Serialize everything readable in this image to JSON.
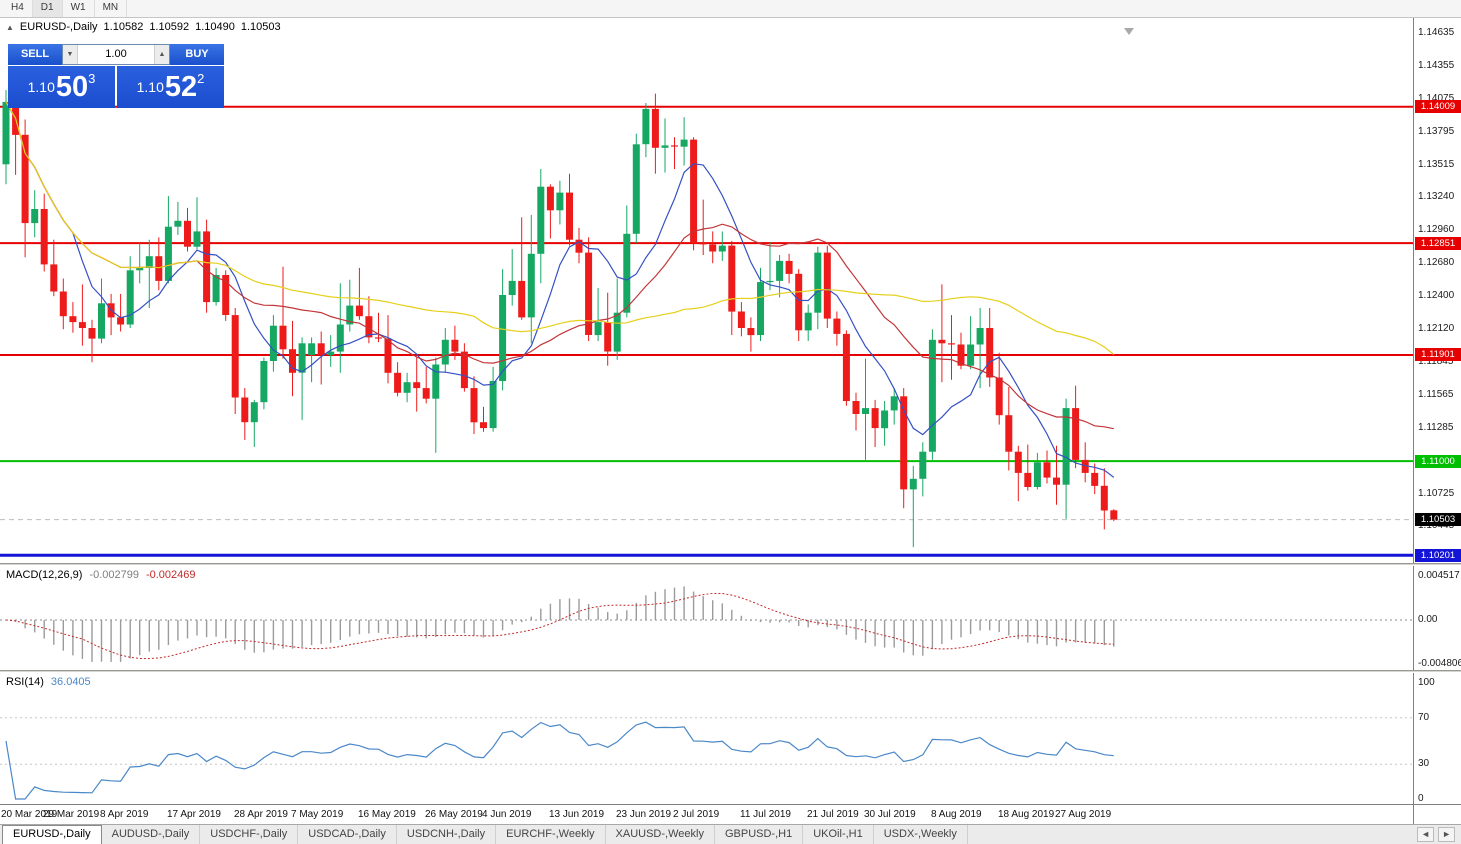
{
  "toolbar": {
    "timeframes": [
      {
        "label": "H4",
        "active": false
      },
      {
        "label": "D1",
        "active": true
      },
      {
        "label": "W1",
        "active": false
      },
      {
        "label": "MN",
        "active": false
      }
    ]
  },
  "chart_header": {
    "expand_icon": "▲",
    "symbol_label": "EURUSD-,Daily",
    "open": "1.10582",
    "high": "1.10592",
    "low": "1.10490",
    "close": "1.10503"
  },
  "trade_panel": {
    "sell_label": "SELL",
    "buy_label": "BUY",
    "volume": "1.00",
    "volume_down_icon": "▼",
    "volume_up_icon": "▲",
    "sell_price_small": "1.10",
    "sell_price_big": "50",
    "sell_price_sup": "3",
    "buy_price_small": "1.10",
    "buy_price_big": "52",
    "buy_price_sup": "2"
  },
  "price_axis": {
    "labels": [
      "1.14635",
      "1.14355",
      "1.14075",
      "1.13795",
      "1.13515",
      "1.13240",
      "1.12960",
      "1.12680",
      "1.12400",
      "1.12120",
      "1.11845",
      "1.11565",
      "1.11285",
      "1.11005",
      "1.10725",
      "1.10445"
    ]
  },
  "levels": [
    {
      "name": "resistance-1",
      "label": "1.14009",
      "price": 1.14009,
      "color": "#e60000",
      "width": 2
    },
    {
      "name": "resistance-2",
      "label": "1.12851",
      "price": 1.12851,
      "color": "#e60000",
      "width": 2
    },
    {
      "name": "resistance-3",
      "label": "1.11901",
      "price": 1.11901,
      "color": "#e60000",
      "width": 2
    },
    {
      "name": "support-green",
      "label": "1.11000",
      "price": 1.11,
      "color": "#00bf00",
      "width": 2
    },
    {
      "name": "support-blue",
      "label": "1.10201",
      "price": 1.10201,
      "color": "#1414d8",
      "width": 3
    }
  ],
  "current_price": {
    "label": "1.10503",
    "value": 1.10503,
    "bg": "#000000"
  },
  "chart_data": {
    "type": "candlestick",
    "title": "EURUSD-,Daily",
    "symbol": "EURUSD",
    "timeframe": "Daily",
    "y_range": [
      1.10135,
      1.14762
    ],
    "candles_ohlc": [
      [
        1.1352,
        1.1415,
        1.1335,
        1.1405
      ],
      [
        1.1405,
        1.1419,
        1.1343,
        1.1377
      ],
      [
        1.1377,
        1.139,
        1.1273,
        1.1302
      ],
      [
        1.1302,
        1.133,
        1.129,
        1.1314
      ],
      [
        1.1314,
        1.1327,
        1.1261,
        1.1267
      ],
      [
        1.1267,
        1.1288,
        1.124,
        1.1244
      ],
      [
        1.1244,
        1.1255,
        1.1212,
        1.1223
      ],
      [
        1.1223,
        1.1235,
        1.1209,
        1.1218
      ],
      [
        1.1218,
        1.125,
        1.1198,
        1.1213
      ],
      [
        1.1213,
        1.122,
        1.1184,
        1.1204
      ],
      [
        1.1204,
        1.1255,
        1.12,
        1.1234
      ],
      [
        1.1234,
        1.1242,
        1.1207,
        1.1222
      ],
      [
        1.1222,
        1.1242,
        1.121,
        1.1216
      ],
      [
        1.1216,
        1.1274,
        1.1213,
        1.1262
      ],
      [
        1.1262,
        1.1285,
        1.1251,
        1.1264
      ],
      [
        1.1264,
        1.1288,
        1.123,
        1.1274
      ],
      [
        1.1274,
        1.129,
        1.1245,
        1.1253
      ],
      [
        1.1253,
        1.1325,
        1.1251,
        1.1299
      ],
      [
        1.1299,
        1.132,
        1.1292,
        1.1304
      ],
      [
        1.1304,
        1.1315,
        1.1278,
        1.1282
      ],
      [
        1.1282,
        1.1324,
        1.128,
        1.1295
      ],
      [
        1.1295,
        1.1305,
        1.1226,
        1.1235
      ],
      [
        1.1235,
        1.1264,
        1.1232,
        1.1258
      ],
      [
        1.1258,
        1.1262,
        1.1219,
        1.1224
      ],
      [
        1.1224,
        1.123,
        1.114,
        1.1154
      ],
      [
        1.1154,
        1.1162,
        1.1118,
        1.1133
      ],
      [
        1.1133,
        1.1152,
        1.1112,
        1.115
      ],
      [
        1.115,
        1.1188,
        1.1144,
        1.1185
      ],
      [
        1.1185,
        1.1224,
        1.1176,
        1.1215
      ],
      [
        1.1215,
        1.1265,
        1.1187,
        1.1195
      ],
      [
        1.1195,
        1.1219,
        1.1155,
        1.1175
      ],
      [
        1.1175,
        1.1205,
        1.1135,
        1.12
      ],
      [
        1.119,
        1.1205,
        1.1167,
        1.12
      ],
      [
        1.12,
        1.121,
        1.1165,
        1.119
      ],
      [
        1.119,
        1.1207,
        1.118,
        1.1193
      ],
      [
        1.1193,
        1.1251,
        1.1175,
        1.1216
      ],
      [
        1.1216,
        1.1254,
        1.121,
        1.1232
      ],
      [
        1.1232,
        1.1264,
        1.122,
        1.1223
      ],
      [
        1.1223,
        1.124,
        1.12,
        1.1205
      ],
      [
        1.1205,
        1.1226,
        1.1201,
        1.1204
      ],
      [
        1.1204,
        1.1224,
        1.1166,
        1.1175
      ],
      [
        1.1175,
        1.1184,
        1.1155,
        1.1158
      ],
      [
        1.1158,
        1.1175,
        1.115,
        1.1167
      ],
      [
        1.1167,
        1.1188,
        1.1142,
        1.1162
      ],
      [
        1.1162,
        1.118,
        1.1149,
        1.1153
      ],
      [
        1.1153,
        1.1188,
        1.1107,
        1.1182
      ],
      [
        1.1182,
        1.1213,
        1.1175,
        1.1203
      ],
      [
        1.1203,
        1.1215,
        1.1186,
        1.1193
      ],
      [
        1.1193,
        1.12,
        1.1159,
        1.1162
      ],
      [
        1.1162,
        1.1172,
        1.1123,
        1.1133
      ],
      [
        1.1133,
        1.1146,
        1.1125,
        1.1128
      ],
      [
        1.1128,
        1.118,
        1.1125,
        1.1168
      ],
      [
        1.1168,
        1.1263,
        1.116,
        1.1241
      ],
      [
        1.1241,
        1.128,
        1.1232,
        1.1253
      ],
      [
        1.1253,
        1.1307,
        1.122,
        1.1222
      ],
      [
        1.1222,
        1.1309,
        1.12,
        1.1276
      ],
      [
        1.1276,
        1.1348,
        1.1251,
        1.1333
      ],
      [
        1.1333,
        1.1335,
        1.1289,
        1.1313
      ],
      [
        1.1313,
        1.1338,
        1.1301,
        1.1328
      ],
      [
        1.1328,
        1.1344,
        1.1283,
        1.1288
      ],
      [
        1.1288,
        1.1298,
        1.1268,
        1.1277
      ],
      [
        1.1277,
        1.129,
        1.1202,
        1.1207
      ],
      [
        1.1207,
        1.1247,
        1.1202,
        1.1218
      ],
      [
        1.1218,
        1.1243,
        1.1181,
        1.1193
      ],
      [
        1.1193,
        1.1255,
        1.1186,
        1.1226
      ],
      [
        1.1226,
        1.1317,
        1.1222,
        1.1293
      ],
      [
        1.1293,
        1.1378,
        1.1285,
        1.1369
      ],
      [
        1.1369,
        1.1404,
        1.1358,
        1.1399
      ],
      [
        1.1399,
        1.1412,
        1.1344,
        1.1366
      ],
      [
        1.1366,
        1.1391,
        1.1345,
        1.1368
      ],
      [
        1.1368,
        1.1375,
        1.1348,
        1.1367
      ],
      [
        1.1367,
        1.1392,
        1.1351,
        1.1373
      ],
      [
        1.1373,
        1.1375,
        1.1279,
        1.1285
      ],
      [
        1.1285,
        1.1322,
        1.1275,
        1.1284
      ],
      [
        1.1284,
        1.1295,
        1.1268,
        1.1278
      ],
      [
        1.1278,
        1.1295,
        1.127,
        1.1283
      ],
      [
        1.1283,
        1.1287,
        1.1207,
        1.1227
      ],
      [
        1.1227,
        1.1235,
        1.1206,
        1.1213
      ],
      [
        1.1213,
        1.1222,
        1.1193,
        1.1207
      ],
      [
        1.1207,
        1.1264,
        1.1202,
        1.1252
      ],
      [
        1.1252,
        1.1286,
        1.1245,
        1.1253
      ],
      [
        1.1253,
        1.1275,
        1.1239,
        1.127
      ],
      [
        1.127,
        1.1276,
        1.1251,
        1.1259
      ],
      [
        1.1259,
        1.1263,
        1.1202,
        1.1211
      ],
      [
        1.1211,
        1.1233,
        1.1202,
        1.1226
      ],
      [
        1.1226,
        1.1282,
        1.1212,
        1.1277
      ],
      [
        1.1277,
        1.1283,
        1.1213,
        1.1221
      ],
      [
        1.1221,
        1.1227,
        1.1198,
        1.1208
      ],
      [
        1.1208,
        1.1211,
        1.1147,
        1.1151
      ],
      [
        1.1151,
        1.1158,
        1.1126,
        1.114
      ],
      [
        1.114,
        1.1187,
        1.1101,
        1.1145
      ],
      [
        1.1145,
        1.1152,
        1.1112,
        1.1128
      ],
      [
        1.1128,
        1.1151,
        1.1113,
        1.1143
      ],
      [
        1.1143,
        1.1162,
        1.1131,
        1.1155
      ],
      [
        1.1155,
        1.1162,
        1.106,
        1.1076
      ],
      [
        1.1076,
        1.1096,
        1.1027,
        1.1085
      ],
      [
        1.1085,
        1.1116,
        1.107,
        1.1108
      ],
      [
        1.1108,
        1.1212,
        1.1101,
        1.1203
      ],
      [
        1.1203,
        1.125,
        1.1167,
        1.12
      ],
      [
        1.12,
        1.1224,
        1.1169,
        1.1199
      ],
      [
        1.1199,
        1.1209,
        1.1178,
        1.1181
      ],
      [
        1.1181,
        1.1223,
        1.1178,
        1.1199
      ],
      [
        1.1199,
        1.123,
        1.1162,
        1.1213
      ],
      [
        1.1213,
        1.123,
        1.1163,
        1.1171
      ],
      [
        1.1171,
        1.1192,
        1.1131,
        1.1139
      ],
      [
        1.1139,
        1.1163,
        1.1092,
        1.1108
      ],
      [
        1.1108,
        1.1113,
        1.1066,
        1.109
      ],
      [
        1.109,
        1.1114,
        1.1075,
        1.1078
      ],
      [
        1.1078,
        1.1107,
        1.1076,
        1.1099
      ],
      [
        1.1099,
        1.1109,
        1.1081,
        1.1086
      ],
      [
        1.1086,
        1.1113,
        1.1063,
        1.108
      ],
      [
        1.108,
        1.1153,
        1.1051,
        1.1145
      ],
      [
        1.1145,
        1.1164,
        1.1094,
        1.1101
      ],
      [
        1.1101,
        1.1116,
        1.1082,
        1.109
      ],
      [
        1.109,
        1.1098,
        1.1072,
        1.1079
      ],
      [
        1.1079,
        1.1094,
        1.1042,
        1.1058
      ],
      [
        1.10582,
        1.10592,
        1.1049,
        1.10503
      ]
    ],
    "up_color": "#16a863",
    "down_color": "#ee1b1b",
    "x_labels": [
      {
        "text": "20 Mar 2019",
        "index": 0
      },
      {
        "text": "29 Mar 2019",
        "index": 7
      },
      {
        "text": "8 Apr 2019",
        "index": 13
      },
      {
        "text": "17 Apr 2019",
        "index": 20
      },
      {
        "text": "28 Apr 2019",
        "index": 27
      },
      {
        "text": "7 May 2019",
        "index": 33
      },
      {
        "text": "16 May 2019",
        "index": 40
      },
      {
        "text": "26 May 2019",
        "index": 47
      },
      {
        "text": "4 Jun 2019",
        "index": 53
      },
      {
        "text": "13 Jun 2019",
        "index": 60
      },
      {
        "text": "23 Jun 2019",
        "index": 67
      },
      {
        "text": "2 Jul 2019",
        "index": 73
      },
      {
        "text": "11 Jul 2019",
        "index": 80
      },
      {
        "text": "21 Jul 2019",
        "index": 87
      },
      {
        "text": "30 Jul 2019",
        "index": 93
      },
      {
        "text": "8 Aug 2019",
        "index": 100
      },
      {
        "text": "18 Aug 2019",
        "index": 107
      },
      {
        "text": "27 Aug 2019",
        "index": 113
      }
    ],
    "moving_averages": [
      {
        "period": 8,
        "color": "#3550c4"
      },
      {
        "period": 21,
        "color": "#c23539"
      },
      {
        "period": 50,
        "color": "#e6cf1b"
      }
    ],
    "indicators": {
      "macd": {
        "label": "MACD(12,26,9)",
        "value_main": "-0.002799",
        "value_signal": "-0.002469",
        "fast": 12,
        "slow": 26,
        "signal": 9,
        "axis": [
          "0.004517",
          "0.00",
          "-0.004806"
        ],
        "histogram_color": "#9b9b9b",
        "signal_color": "#c22b2b"
      },
      "rsi": {
        "label": "RSI(14)",
        "value": "36.0405",
        "period": 14,
        "axis": [
          "100",
          "70",
          "30",
          "0"
        ],
        "levels": [
          70,
          30
        ],
        "line_color": "#4b88c8"
      }
    }
  },
  "tab_bar": {
    "tabs": [
      {
        "label": "EURUSD-,Daily",
        "active": true
      },
      {
        "label": "AUDUSD-,Daily",
        "active": false
      },
      {
        "label": "USDCHF-,Daily",
        "active": false
      },
      {
        "label": "USDCAD-,Daily",
        "active": false
      },
      {
        "label": "USDCNH-,Daily",
        "active": false
      },
      {
        "label": "EURCHF-,Weekly",
        "active": false
      },
      {
        "label": "XAUUSD-,Weekly",
        "active": false
      },
      {
        "label": "GBPUSD-,H1",
        "active": false
      },
      {
        "label": "UKOil-,H1",
        "active": false
      },
      {
        "label": "USDX-,Weekly",
        "active": false
      }
    ],
    "scroll_left_icon": "◄",
    "scroll_right_icon": "►"
  }
}
